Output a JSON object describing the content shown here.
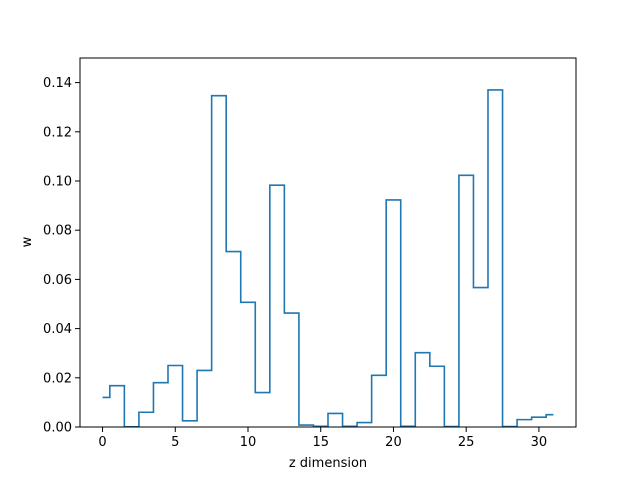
{
  "chart_data": {
    "type": "line",
    "drawstyle": "steps-mid",
    "xlabel": "z dimension",
    "ylabel": "w",
    "xlim": [
      -1.55,
      32.55
    ],
    "ylim": [
      0,
      0.15
    ],
    "xticks": [
      0,
      5,
      10,
      15,
      20,
      25,
      30
    ],
    "yticks": [
      0.0,
      0.02,
      0.04,
      0.06,
      0.08,
      0.1,
      0.12,
      0.14
    ],
    "xtick_labels": [
      "0",
      "5",
      "10",
      "15",
      "20",
      "25",
      "30"
    ],
    "ytick_labels": [
      "0.00",
      "0.02",
      "0.04",
      "0.06",
      "0.08",
      "0.10",
      "0.12",
      "0.14"
    ],
    "series": [
      {
        "color": "#1f77b4",
        "x": [
          0,
          1,
          2,
          3,
          4,
          5,
          6,
          7,
          8,
          9,
          10,
          11,
          12,
          13,
          14,
          15,
          16,
          17,
          18,
          19,
          20,
          21,
          22,
          23,
          24,
          25,
          26,
          27,
          28,
          29,
          30,
          31
        ],
        "y": [
          0.012,
          0.0168,
          0.0001,
          0.006,
          0.018,
          0.025,
          0.0025,
          0.023,
          0.1347,
          0.0713,
          0.0507,
          0.014,
          0.0983,
          0.0463,
          0.0008,
          0.0003,
          0.0055,
          0.0003,
          0.0018,
          0.021,
          0.0923,
          0.0003,
          0.0302,
          0.0247,
          0.0002,
          0.1023,
          0.0567,
          0.137,
          0.0002,
          0.003,
          0.004,
          0.005
        ]
      }
    ],
    "grid": false,
    "legend": "none"
  }
}
